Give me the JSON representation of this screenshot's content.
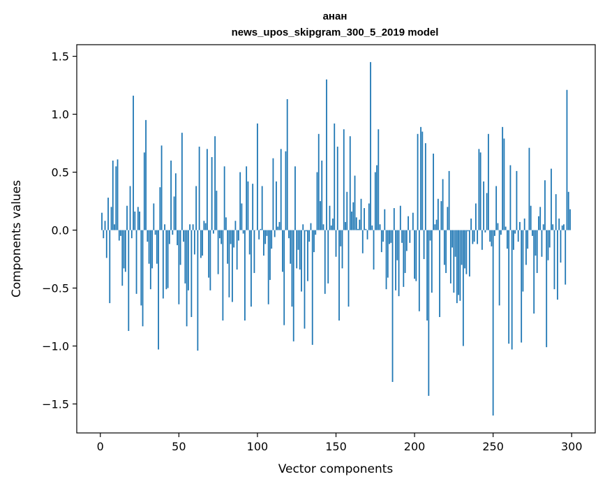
{
  "chart_data": {
    "type": "bar",
    "title": "анан",
    "subtitle": "news_upos_skipgram_300_5_2019 model",
    "xlabel": "Vector components",
    "ylabel": "Components values",
    "xlim": [
      -15,
      315
    ],
    "ylim": [
      -1.75,
      1.6
    ],
    "xticks": [
      0,
      50,
      100,
      150,
      200,
      250,
      300
    ],
    "xtick_labels": [
      "0",
      "50",
      "100",
      "150",
      "200",
      "250",
      "300"
    ],
    "yticks": [
      -1.5,
      -1.0,
      -0.5,
      0.0,
      0.5,
      1.0,
      1.5
    ],
    "ytick_labels": [
      "−1.5",
      "−1.0",
      "−0.5",
      "0.0",
      "0.5",
      "1.0",
      "1.5"
    ],
    "grid": false,
    "bar_color": "#1f77b4",
    "values": [
      0.15,
      -0.07,
      0.08,
      -0.24,
      0.28,
      -0.63,
      0.2,
      0.6,
      0.05,
      0.55,
      0.61,
      -0.09,
      -0.05,
      -0.48,
      -0.33,
      -0.36,
      0.21,
      -0.87,
      0.38,
      -0.07,
      1.16,
      0.16,
      -0.55,
      0.2,
      0.16,
      -0.65,
      -0.83,
      0.67,
      0.95,
      -0.1,
      -0.29,
      -0.51,
      -0.33,
      0.23,
      -0.04,
      -0.29,
      -1.03,
      0.37,
      0.73,
      -0.59,
      0.05,
      -0.51,
      -0.5,
      -0.12,
      0.6,
      -0.04,
      0.29,
      0.49,
      -0.13,
      -0.64,
      -0.3,
      0.84,
      -0.1,
      -0.46,
      -0.83,
      -0.52,
      0.05,
      -0.75,
      0.05,
      -0.21,
      0.38,
      -1.04,
      0.72,
      -0.24,
      -0.22,
      0.08,
      0.06,
      0.7,
      -0.41,
      -0.52,
      0.63,
      -0.03,
      0.81,
      0.34,
      -0.38,
      -0.07,
      -0.12,
      -0.78,
      0.55,
      0.11,
      -0.29,
      -0.58,
      -0.12,
      -0.62,
      -0.15,
      0.08,
      -0.34,
      -0.09,
      0.5,
      0.23,
      -0.03,
      -0.78,
      0.55,
      0.42,
      -0.21,
      -0.66,
      0.4,
      -0.37,
      0.0,
      0.92,
      -0.08,
      0.01,
      0.38,
      -0.22,
      -0.12,
      -0.05,
      -0.64,
      -0.43,
      -0.16,
      0.62,
      -0.06,
      0.42,
      0.03,
      0.07,
      0.7,
      -0.36,
      -0.82,
      0.68,
      1.13,
      -0.07,
      -0.29,
      -0.66,
      -0.96,
      0.55,
      -0.33,
      -0.17,
      -0.34,
      -0.53,
      0.05,
      -0.85,
      -0.01,
      -0.44,
      -0.1,
      0.06,
      -0.99,
      -0.19,
      -0.04,
      0.5,
      0.83,
      0.25,
      0.6,
      0.05,
      -0.55,
      1.3,
      -0.46,
      0.21,
      0.04,
      0.1,
      0.92,
      -0.23,
      0.72,
      -0.78,
      -0.14,
      -0.33,
      0.87,
      0.07,
      0.33,
      -0.66,
      0.81,
      0.16,
      0.24,
      0.47,
      0.11,
      0.01,
      0.09,
      0.27,
      -0.2,
      0.19,
      0.01,
      -0.08,
      0.23,
      1.45,
      0.04,
      -0.34,
      0.5,
      0.56,
      0.87,
      0.05,
      -0.19,
      -0.1,
      0.18,
      -0.51,
      -0.41,
      -0.12,
      -0.11,
      -1.31,
      0.19,
      -0.52,
      -0.26,
      -0.57,
      0.21,
      -0.11,
      -0.49,
      -0.37,
      -0.18,
      0.12,
      -0.11,
      0.0,
      0.15,
      -0.42,
      -0.44,
      0.83,
      -0.7,
      0.89,
      0.85,
      -0.25,
      0.75,
      -0.78,
      -1.43,
      -0.09,
      -0.54,
      0.66,
      0.05,
      0.09,
      0.27,
      -0.75,
      0.25,
      0.44,
      -0.3,
      -0.37,
      0.2,
      0.51,
      -0.46,
      -0.15,
      -0.54,
      -0.23,
      -0.63,
      -0.56,
      -0.61,
      -0.3,
      -1.0,
      -0.33,
      -0.38,
      -0.01,
      -0.4,
      0.1,
      -0.12,
      -0.1,
      0.23,
      -0.12,
      0.7,
      0.67,
      -0.17,
      0.42,
      -0.02,
      0.32,
      0.83,
      -0.1,
      -0.14,
      -1.6,
      -0.05,
      0.38,
      0.06,
      -0.65,
      -0.04,
      0.89,
      0.79,
      0.03,
      -0.16,
      -0.98,
      0.56,
      -1.03,
      -0.17,
      -0.03,
      0.51,
      -0.1,
      0.07,
      -0.97,
      -0.53,
      0.1,
      -0.3,
      -0.16,
      0.71,
      0.21,
      -0.05,
      -0.72,
      -0.22,
      -0.37,
      0.12,
      0.2,
      -0.23,
      0.05,
      0.43,
      -1.01,
      -0.26,
      -0.15,
      0.53,
      0.05,
      -0.51,
      0.31,
      -0.6,
      0.1,
      -0.28,
      0.04,
      0.05,
      -0.47,
      1.21,
      0.33,
      0.18
    ]
  }
}
